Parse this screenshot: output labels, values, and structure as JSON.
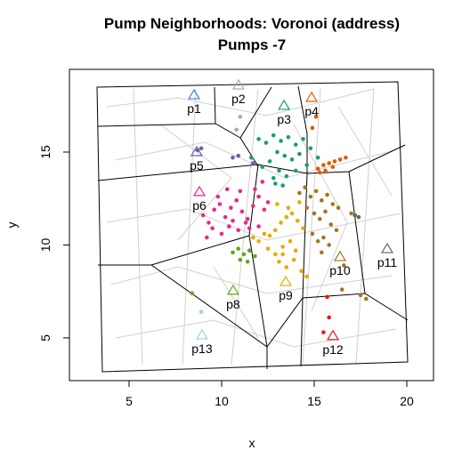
{
  "chart_data": {
    "type": "scatter",
    "title": "Pump Neighborhoods: Voronoi (address)",
    "subtitle": "Pumps -7",
    "xlabel": "x",
    "ylabel": "y",
    "xlim": [
      1.78,
      21.44
    ],
    "ylim": [
      2.7,
      19.45
    ],
    "xticks": [
      5,
      10,
      15,
      20
    ],
    "yticks": [
      5,
      10,
      15
    ],
    "pumps": [
      {
        "name": "p1",
        "x": 8.51,
        "y": 18.06,
        "color": "#4a7fd6"
      },
      {
        "name": "p2",
        "x": 10.91,
        "y": 18.59,
        "color": "#aaaaaa"
      },
      {
        "name": "p3",
        "x": 13.37,
        "y": 17.49,
        "color": "#1b9e77"
      },
      {
        "name": "p4",
        "x": 14.86,
        "y": 17.92,
        "color": "#d95f02"
      },
      {
        "name": "p5",
        "x": 8.65,
        "y": 15.0,
        "color": "#6a5fb0"
      },
      {
        "name": "p6",
        "x": 8.8,
        "y": 12.85,
        "color": "#e7298a"
      },
      {
        "name": "p8",
        "x": 10.62,
        "y": 7.54,
        "color": "#66a61e"
      },
      {
        "name": "p9",
        "x": 13.46,
        "y": 8.01,
        "color": "#e6ab02"
      },
      {
        "name": "p10",
        "x": 16.39,
        "y": 9.35,
        "color": "#a6761d"
      },
      {
        "name": "p11",
        "x": 18.94,
        "y": 9.78,
        "color": "#666666"
      },
      {
        "name": "p12",
        "x": 16.01,
        "y": 5.1,
        "color": "#e41a1c"
      },
      {
        "name": "p13",
        "x": 8.94,
        "y": 5.14,
        "color": "#a6cee3"
      }
    ],
    "cases": [
      {
        "color": "#aaaaaa",
        "x": [
          10.8,
          11.0
        ],
        "y": [
          16.2,
          16.9
        ]
      },
      {
        "color": "#1b9e77",
        "x": [
          12.0,
          12.4,
          12.8,
          13.2,
          13.6,
          14.0,
          14.4,
          13.0,
          13.4,
          13.8,
          12.6,
          14.2,
          14.8,
          12.2,
          13.1,
          13.5,
          14.0,
          14.6,
          12.8,
          13.3,
          15.2,
          11.6,
          12.9
        ],
        "y": [
          15.7,
          15.5,
          15.9,
          15.6,
          15.8,
          15.4,
          15.7,
          15.0,
          14.8,
          14.6,
          14.5,
          14.9,
          15.2,
          14.2,
          14.0,
          13.7,
          14.0,
          14.3,
          13.6,
          13.2,
          14.7,
          14.7,
          13.3
        ]
      },
      {
        "color": "#d95f02",
        "x": [
          15.2,
          15.5,
          15.8,
          16.1,
          16.4,
          16.7,
          15.6,
          16.0,
          15.3,
          14.9,
          15.1
        ],
        "y": [
          14.1,
          14.3,
          14.4,
          14.5,
          14.6,
          14.7,
          14.0,
          14.2,
          13.9,
          16.3,
          16.9
        ]
      },
      {
        "color": "#6a5fb0",
        "x": [
          8.7,
          8.9,
          10.6,
          10.9,
          11.7
        ],
        "y": [
          15.1,
          15.2,
          14.7,
          14.8,
          14.4
        ]
      },
      {
        "color": "#e7298a",
        "x": [
          9.0,
          9.3,
          9.6,
          9.9,
          10.2,
          10.5,
          10.8,
          11.1,
          11.4,
          11.7,
          12.0,
          12.3,
          9.5,
          10.0,
          10.4,
          10.9,
          11.3,
          11.8,
          12.2,
          9.2,
          9.8,
          10.6,
          11.5,
          12.5,
          11.0,
          10.3,
          12.0
        ],
        "y": [
          11.6,
          11.2,
          11.9,
          12.2,
          11.5,
          12.0,
          12.4,
          11.8,
          11.4,
          12.1,
          12.6,
          11.9,
          10.9,
          10.6,
          11.0,
          10.8,
          11.2,
          13.0,
          13.4,
          10.4,
          12.6,
          11.3,
          10.9,
          12.3,
          12.9,
          13.0,
          11.0
        ]
      },
      {
        "color": "#66a61e",
        "x": [
          10.6,
          10.9,
          11.2,
          11.5,
          11.8,
          11.0,
          11.4,
          8.4
        ],
        "y": [
          9.6,
          9.8,
          9.5,
          9.7,
          9.4,
          9.2,
          9.1,
          7.4
        ]
      },
      {
        "color": "#e6ab02",
        "x": [
          11.7,
          12.0,
          12.3,
          12.6,
          12.9,
          13.2,
          13.5,
          13.8,
          14.1,
          14.4,
          12.5,
          12.9,
          13.3,
          13.7,
          14.0,
          13.1,
          13.5,
          13.9,
          14.3,
          13.0,
          13.6,
          14.2,
          14.6,
          13.3
        ],
        "y": [
          10.4,
          10.2,
          10.6,
          10.5,
          10.8,
          11.2,
          11.5,
          11.7,
          11.3,
          10.9,
          9.8,
          9.5,
          9.9,
          10.2,
          9.7,
          9.1,
          8.8,
          9.2,
          8.6,
          12.2,
          12.0,
          12.3,
          8.3,
          9.5
        ]
      },
      {
        "color": "#a6761d",
        "x": [
          14.2,
          14.5,
          14.8,
          15.1,
          15.4,
          15.7,
          16.0,
          16.3,
          14.6,
          15.0,
          15.3,
          15.6,
          15.9,
          16.2,
          15.2,
          15.5,
          15.8,
          14.9,
          15.4,
          16.6,
          17.0,
          17.5,
          17.8,
          16.5
        ],
        "y": [
          12.8,
          13.1,
          12.6,
          12.9,
          12.4,
          12.7,
          12.2,
          12.0,
          12.0,
          11.7,
          11.4,
          11.8,
          11.1,
          10.8,
          10.2,
          10.4,
          10.0,
          10.6,
          9.6,
          8.9,
          11.7,
          7.3,
          7.1,
          7.6
        ]
      },
      {
        "color": "#666666",
        "x": [
          17.2,
          17.4
        ],
        "y": [
          11.6,
          11.5
        ]
      },
      {
        "color": "#e41a1c",
        "x": [
          15.7,
          15.8,
          15.5
        ],
        "y": [
          7.2,
          6.1,
          5.3
        ]
      },
      {
        "color": "#a6cee3",
        "x": [
          8.9
        ],
        "y": [
          6.4
        ]
      }
    ]
  }
}
